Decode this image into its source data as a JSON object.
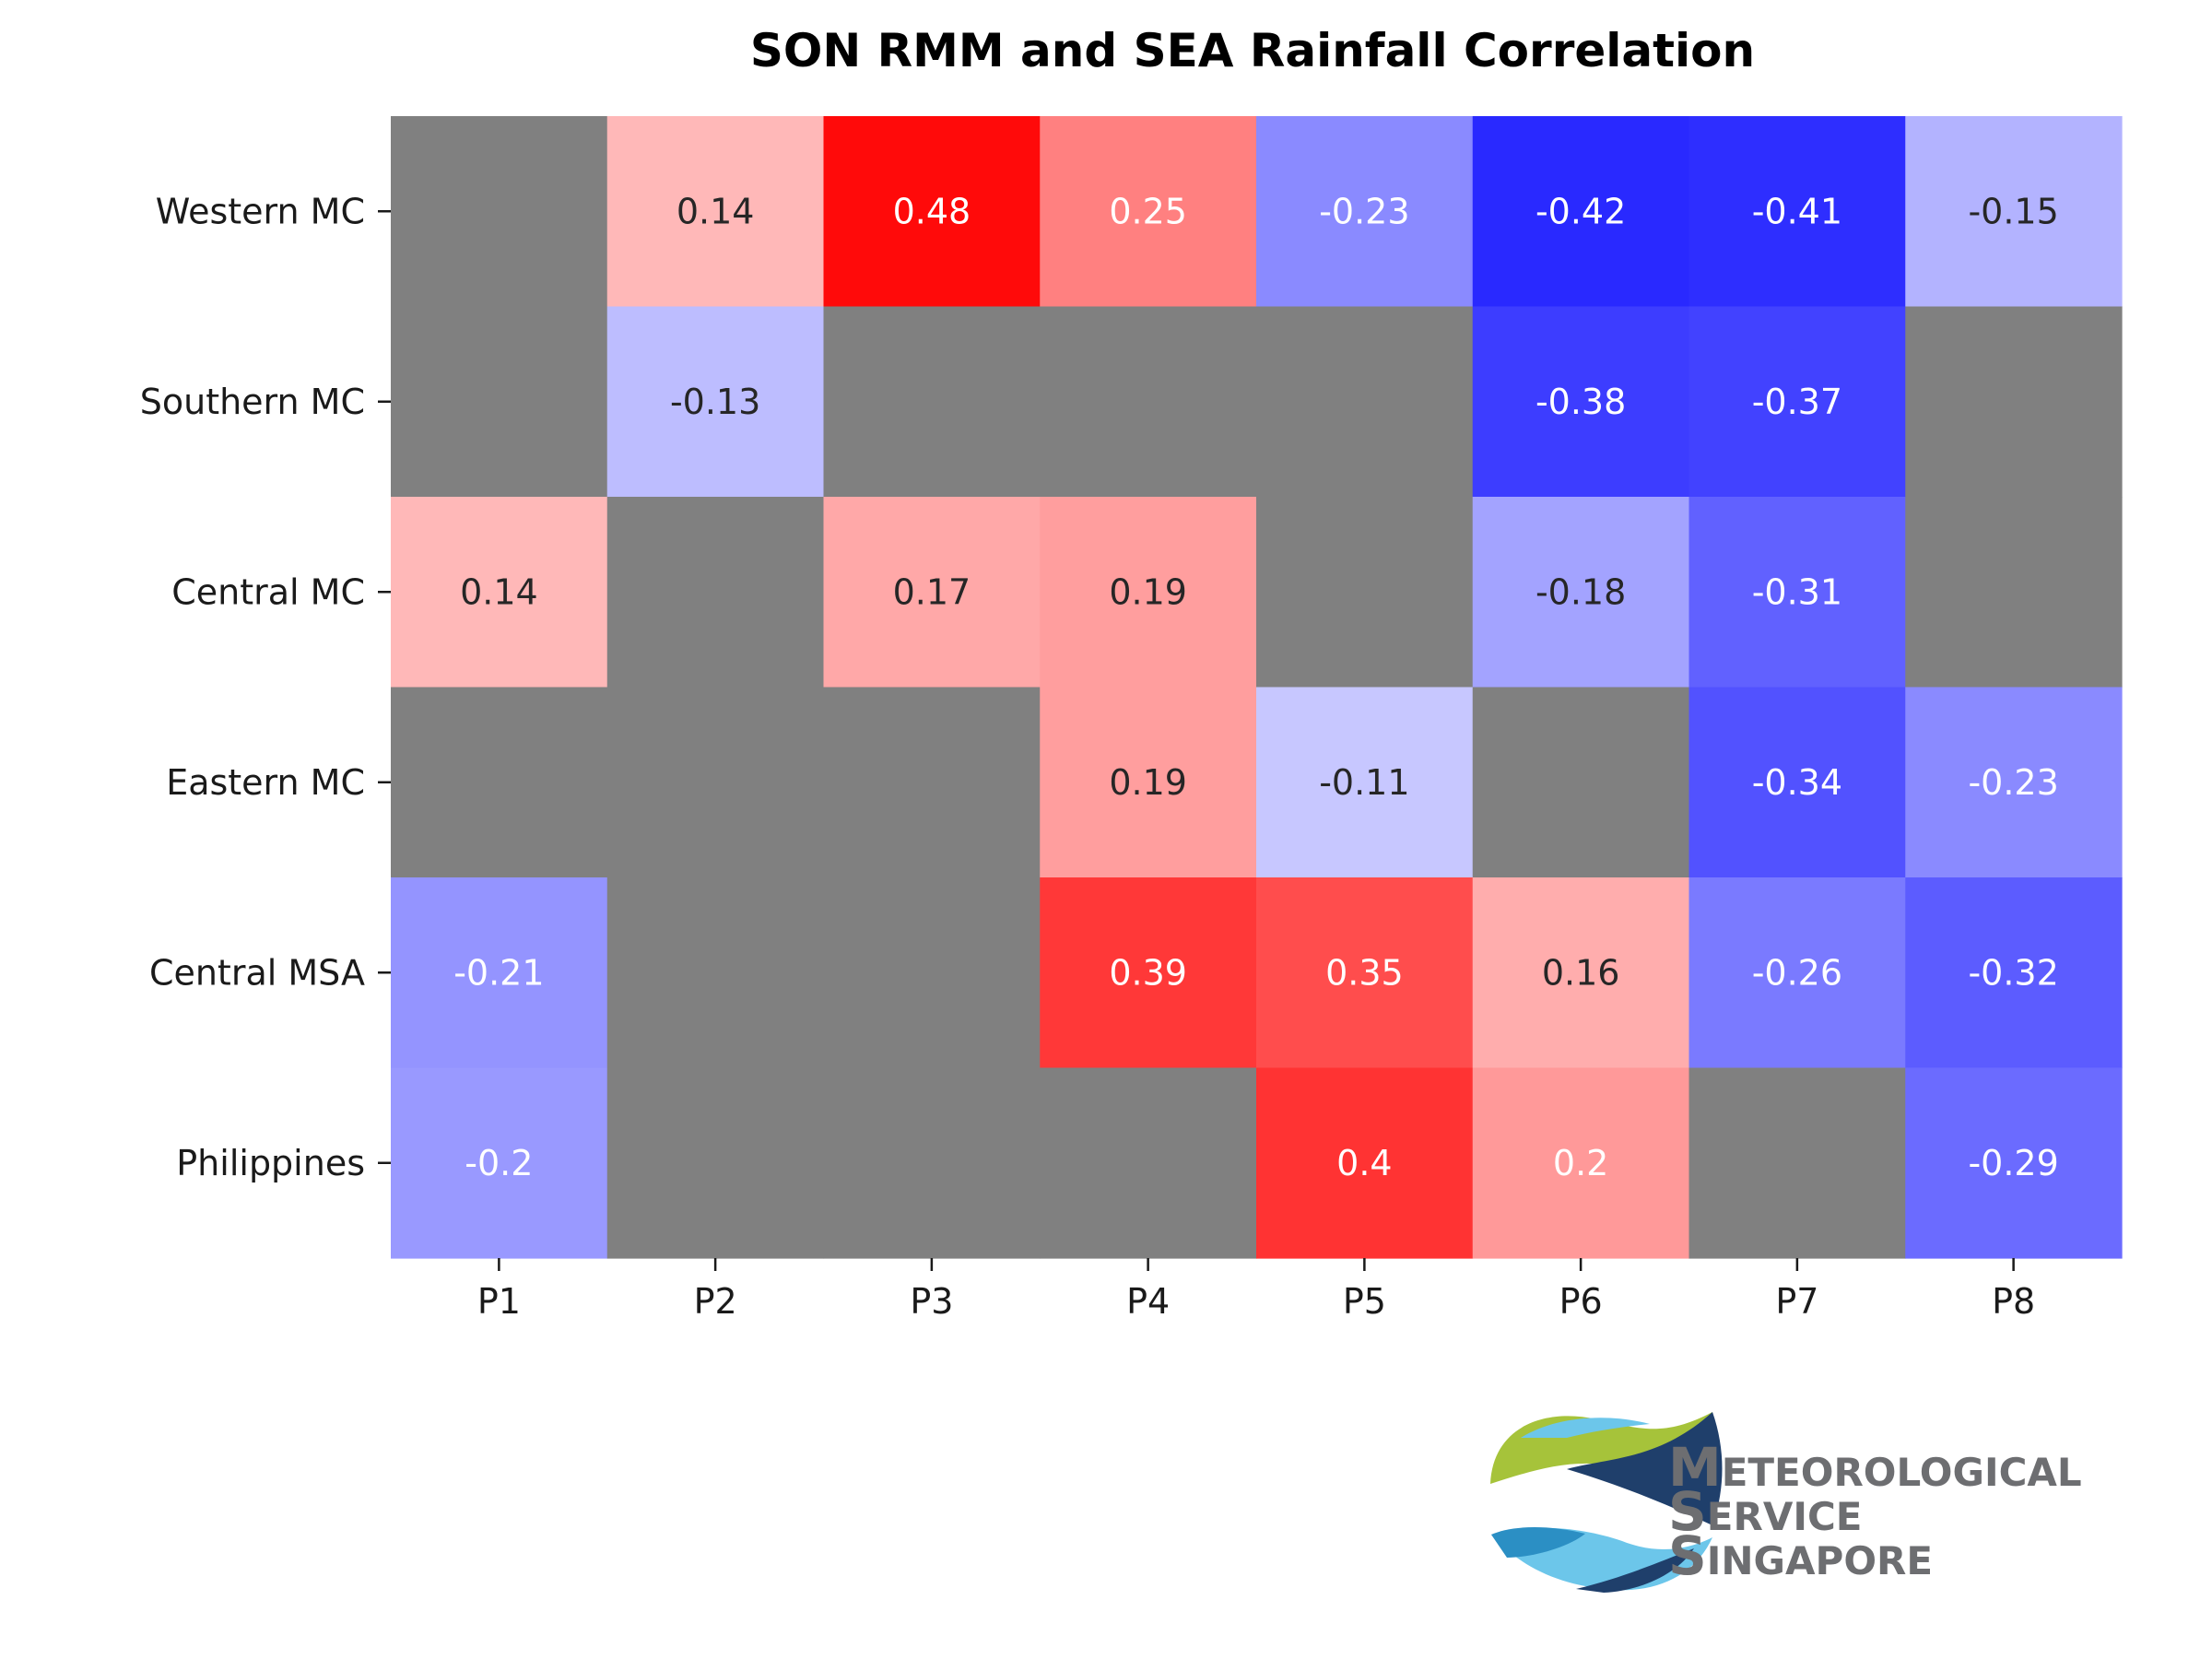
{
  "chart_data": {
    "type": "heatmap",
    "title": "SON RMM and SEA Rainfall Correlation",
    "x_categories": [
      "P1",
      "P2",
      "P3",
      "P4",
      "P5",
      "P6",
      "P7",
      "P8"
    ],
    "y_categories": [
      "Western MC",
      "Southern MC",
      "Central MC",
      "Eastern MC",
      "Central MSA",
      "Philippines"
    ],
    "values": [
      [
        null,
        0.14,
        0.48,
        0.25,
        -0.23,
        -0.42,
        -0.41,
        -0.15
      ],
      [
        null,
        -0.13,
        null,
        null,
        null,
        -0.38,
        -0.37,
        null
      ],
      [
        0.14,
        null,
        0.17,
        0.19,
        null,
        -0.18,
        -0.31,
        null
      ],
      [
        null,
        null,
        null,
        0.19,
        -0.11,
        null,
        -0.34,
        -0.23
      ],
      [
        -0.21,
        null,
        null,
        0.39,
        0.35,
        0.16,
        -0.26,
        -0.32
      ],
      [
        -0.2,
        null,
        null,
        null,
        0.4,
        0.2,
        null,
        -0.29
      ]
    ],
    "value_labels": [
      [
        "",
        "0.14",
        "0.48",
        "0.25",
        "-0.23",
        "-0.42",
        "-0.41",
        "-0.15"
      ],
      [
        "",
        "-0.13",
        "",
        "",
        "",
        "-0.38",
        "-0.37",
        ""
      ],
      [
        "0.14",
        "",
        "0.17",
        "0.19",
        "",
        "-0.18",
        "-0.31",
        ""
      ],
      [
        "",
        "",
        "",
        "0.19",
        "-0.11",
        "",
        "-0.34",
        "-0.23"
      ],
      [
        "-0.21",
        "",
        "",
        "0.39",
        "0.35",
        "0.16",
        "-0.26",
        "-0.32"
      ],
      [
        "-0.2",
        "",
        "",
        "",
        "0.4",
        "0.2",
        "",
        "-0.29"
      ]
    ],
    "colormap": "bwr",
    "vlim": [
      -0.5,
      0.5
    ],
    "missing_color": "#808080",
    "colorbar": false,
    "grid": false,
    "legend": "none"
  },
  "logo": {
    "name": "meteorological-service-singapore-logo",
    "lines": [
      "Meteorological",
      "Service",
      "Singapore"
    ],
    "colors": {
      "text": "#6d6e71",
      "green": "#a6c33a",
      "navy": "#1f3f6b",
      "blue": "#2b8fc4",
      "light_blue": "#6cc6ea"
    }
  }
}
